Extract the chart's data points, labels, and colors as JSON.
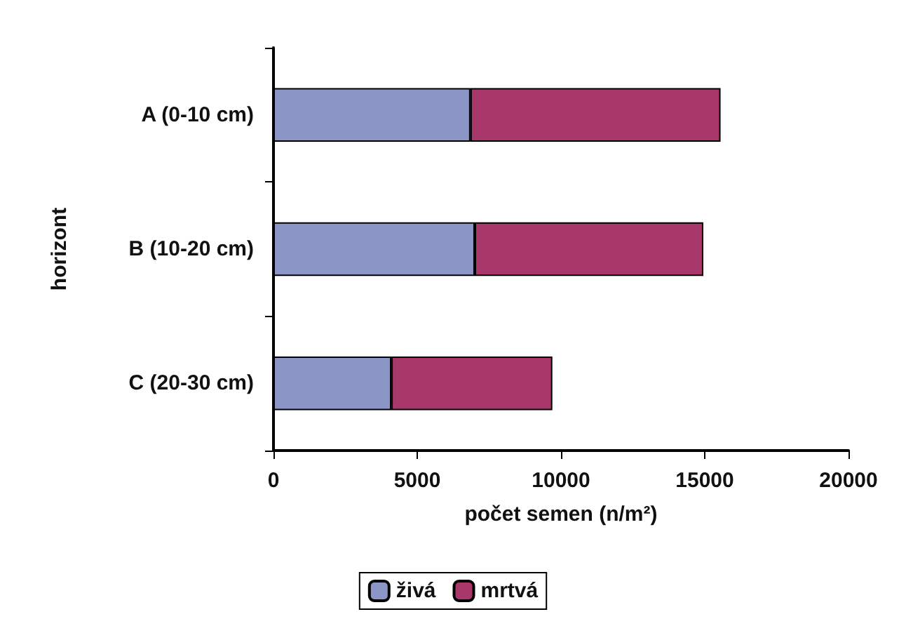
{
  "chart_data": {
    "type": "bar",
    "orientation": "horizontal",
    "stacked": true,
    "xlabel": "počet semen (n/m²)",
    "ylabel": "horizont",
    "categories": [
      "A (0-10 cm)",
      "B (10-20 cm)",
      "C (20-30 cm)"
    ],
    "series": [
      {
        "name": "živá",
        "color": "#8c96c6",
        "values": [
          6850,
          7000,
          4100
        ]
      },
      {
        "name": "mrtvá",
        "color": "#a8386a",
        "values": [
          8700,
          7950,
          5600
        ]
      }
    ],
    "xlim": [
      0,
      20000
    ],
    "xticks": [
      0,
      5000,
      10000,
      15000,
      20000
    ],
    "grid": false,
    "legend": "bottom"
  }
}
